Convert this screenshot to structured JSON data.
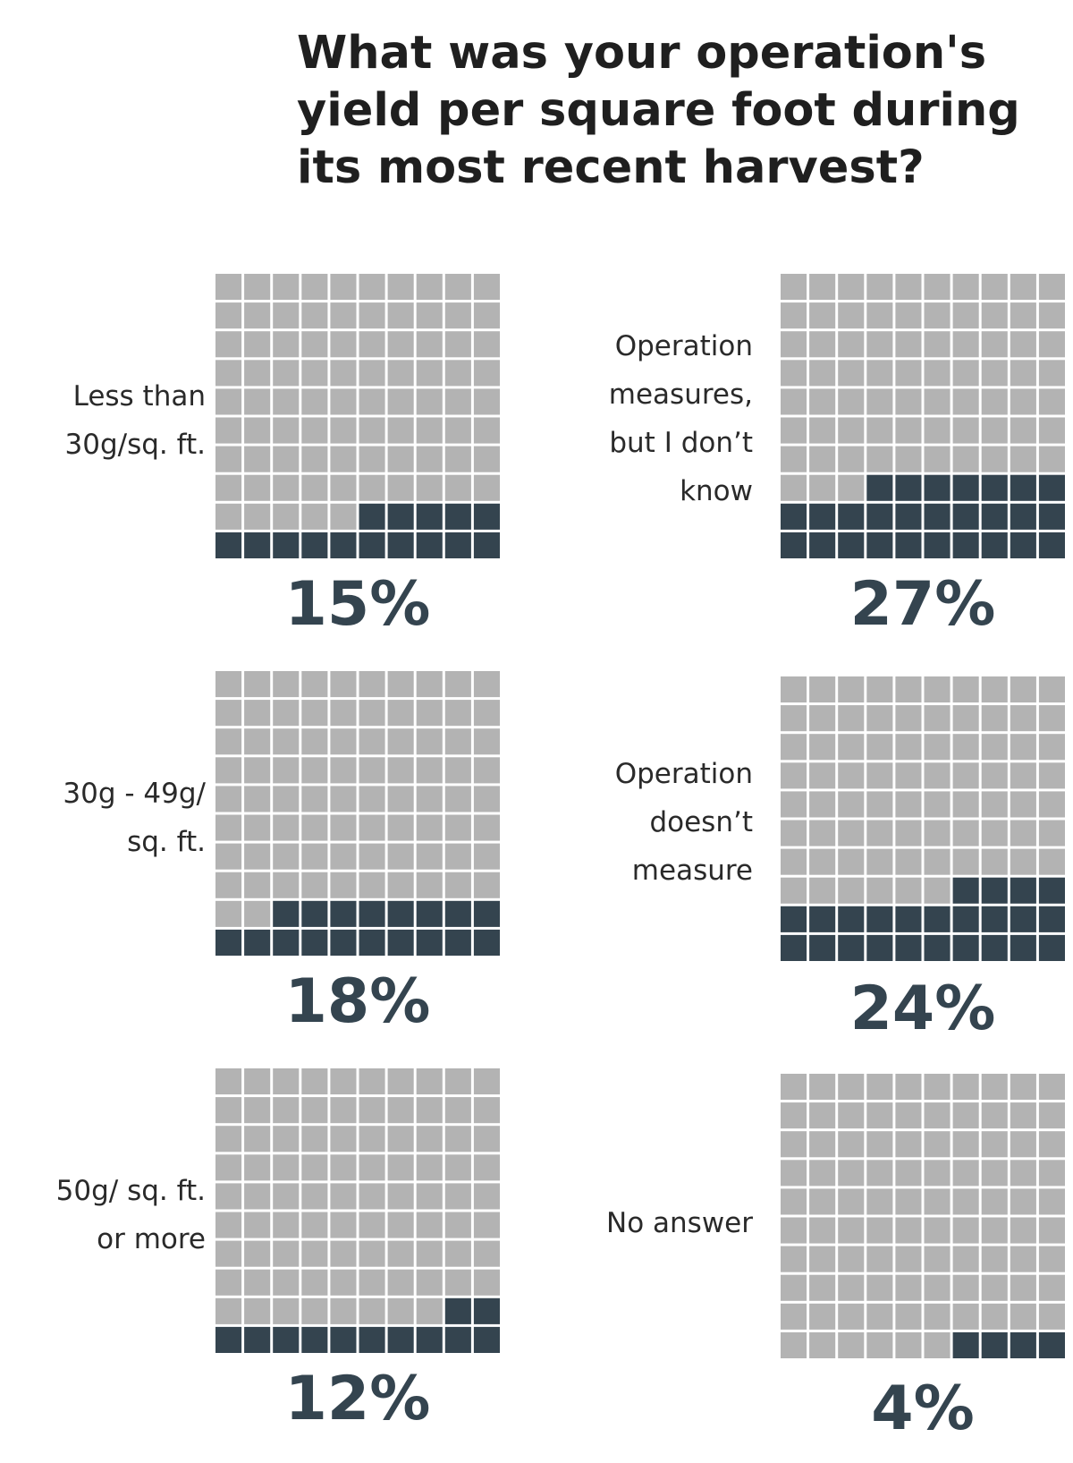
{
  "title": {
    "lines": [
      "What was your operation's",
      "yield per square foot during",
      "its most recent harvest?"
    ]
  },
  "colors": {
    "filled": "#34444f",
    "empty": "#b3b3b3",
    "grid": "#ffffff"
  },
  "chart_data": {
    "type": "waffle",
    "grid": [
      10,
      10
    ],
    "title": "What was your operation's yield per square foot during its most recent harvest?",
    "categories": [
      "Less than 30g/sq. ft.",
      "30g - 49g/ sq. ft.",
      "50g/ sq. ft. or more",
      "Operation measures, but I don’t know",
      "Operation doesn’t measure",
      "No answer"
    ],
    "values": [
      15,
      18,
      12,
      27,
      24,
      4
    ],
    "panels": [
      {
        "label_lines": [
          "Less than",
          "30g/sq. ft."
        ],
        "value": 15,
        "value_label": "15%"
      },
      {
        "label_lines": [
          "30g - 49g/",
          "sq. ft."
        ],
        "value": 18,
        "value_label": "18%"
      },
      {
        "label_lines": [
          "50g/ sq. ft.",
          "or more"
        ],
        "value": 12,
        "value_label": "12%"
      },
      {
        "label_lines": [
          "Operation",
          "measures,",
          "but I don’t",
          "know"
        ],
        "value": 27,
        "value_label": "27%"
      },
      {
        "label_lines": [
          "Operation",
          "doesn’t",
          "measure"
        ],
        "value": 24,
        "value_label": "24%"
      },
      {
        "label_lines": [
          "No answer"
        ],
        "value": 4,
        "value_label": "4%"
      }
    ]
  }
}
